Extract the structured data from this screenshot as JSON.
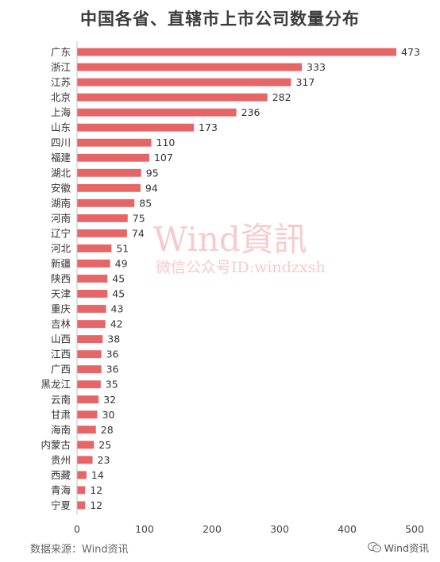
{
  "chart_data": {
    "type": "bar",
    "orientation": "horizontal",
    "title": "中国各省、直辖市上市公司数量分布",
    "categories": [
      "广东",
      "浙江",
      "江苏",
      "北京",
      "上海",
      "山东",
      "四川",
      "福建",
      "湖北",
      "安徽",
      "湖南",
      "河南",
      "辽宁",
      "河北",
      "新疆",
      "陕西",
      "天津",
      "重庆",
      "吉林",
      "山西",
      "江西",
      "广西",
      "黑龙江",
      "云南",
      "甘肃",
      "海南",
      "内蒙古",
      "贵州",
      "西藏",
      "青海",
      "宁夏"
    ],
    "values": [
      473,
      333,
      317,
      282,
      236,
      173,
      110,
      107,
      95,
      94,
      85,
      75,
      74,
      51,
      49,
      45,
      45,
      43,
      42,
      38,
      36,
      36,
      35,
      32,
      30,
      28,
      25,
      23,
      14,
      12,
      12
    ],
    "xlim": [
      0,
      500
    ],
    "xticks": [
      0,
      100,
      200,
      300,
      400,
      500
    ],
    "xlabel": "",
    "ylabel": "",
    "grid": false,
    "bar_color": "#e66566"
  },
  "watermark": {
    "line1": "Wind資訊",
    "line2": "微信公众号ID:windzxsh"
  },
  "footer": {
    "source": "数据来源：Wind资讯",
    "brand": "Wind资讯",
    "brand_icon": "wechat-icon"
  }
}
